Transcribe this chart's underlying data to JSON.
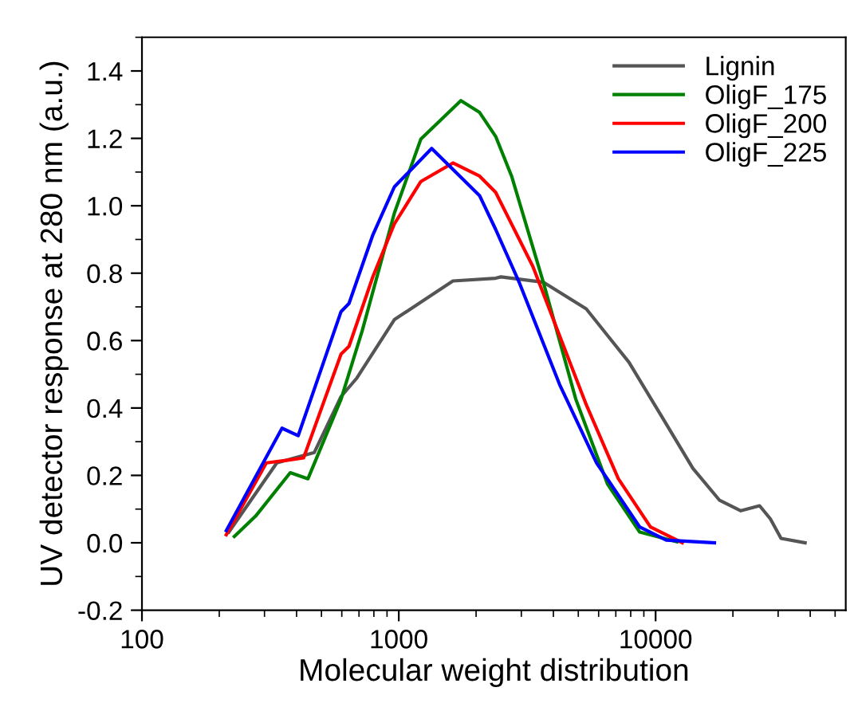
{
  "chart_data": {
    "type": "line",
    "xlabel": "Molecular weight distribution",
    "ylabel": "UV detector response at 280 nm (a.u.)",
    "log": "x",
    "xlim": [
      100,
      55000
    ],
    "xticks": [
      100,
      1000,
      10000
    ],
    "ylim": [
      -0.2,
      1.5
    ],
    "yticks": [
      -0.2,
      {
        "value": 0,
        "label": "0.0"
      },
      0.2,
      0.4,
      0.6,
      0.8,
      {
        "value": 1,
        "label": "1.0"
      },
      1.2,
      1.4
    ],
    "grid": false,
    "legend": "top right",
    "marker": "none",
    "line_style": "solid",
    "series": [
      {
        "name": "Lignin",
        "color": "#555555",
        "x": [
          218,
          335,
          406,
          469,
          596,
          687,
          961,
          1281,
          1625,
          2383,
          2500,
          3664,
          5370,
          7870,
          10500,
          13970,
          17750,
          21470,
          25400,
          27980,
          30800,
          38200
        ],
        "values": [
          0.032,
          0.237,
          0.255,
          0.268,
          0.434,
          0.489,
          0.662,
          0.725,
          0.777,
          0.785,
          0.789,
          0.773,
          0.694,
          0.536,
          0.378,
          0.221,
          0.126,
          0.095,
          0.11,
          0.071,
          0.013,
          0.0
        ]
      },
      {
        "name": "OligF_175",
        "color": "#008000",
        "x": [
          229,
          277,
          378,
          443,
          596,
          721,
          961,
          1219,
          1745,
          2064,
          2383,
          2750,
          3664,
          4890,
          6500,
          8670,
          12100
        ],
        "values": [
          0.019,
          0.079,
          0.208,
          0.19,
          0.426,
          0.63,
          0.978,
          1.198,
          1.312,
          1.277,
          1.206,
          1.088,
          0.77,
          0.426,
          0.174,
          0.032,
          0.003
        ]
      },
      {
        "name": "OligF_200",
        "color": "#ff0000",
        "x": [
          213,
          305,
          369,
          426,
          596,
          640,
          793,
          961,
          1219,
          1625,
          2064,
          2383,
          3327,
          5370,
          7160,
          9550,
          12700
        ],
        "values": [
          0.024,
          0.237,
          0.245,
          0.252,
          0.56,
          0.583,
          0.79,
          0.946,
          1.072,
          1.127,
          1.088,
          1.04,
          0.82,
          0.41,
          0.19,
          0.047,
          0.0
        ]
      },
      {
        "name": "OligF_225",
        "color": "#0000ff",
        "x": [
          213,
          351,
          406,
          596,
          640,
          793,
          961,
          1343,
          2064,
          2383,
          2954,
          4227,
          5890,
          8670,
          11000,
          16950
        ],
        "values": [
          0.036,
          0.34,
          0.318,
          0.686,
          0.71,
          0.914,
          1.056,
          1.17,
          1.03,
          0.93,
          0.77,
          0.47,
          0.237,
          0.047,
          0.008,
          0.0
        ]
      }
    ]
  }
}
